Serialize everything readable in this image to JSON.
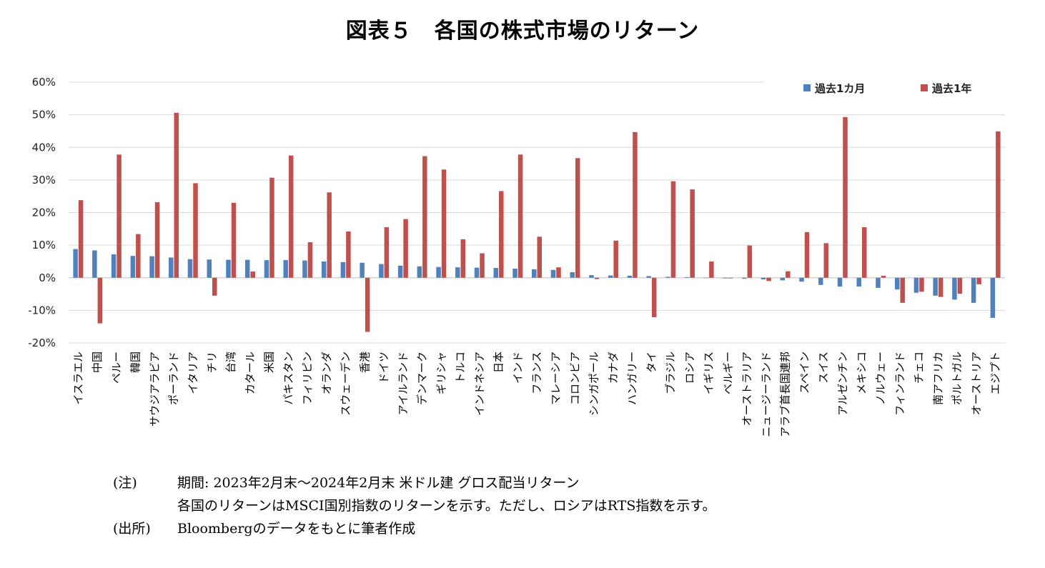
{
  "title": "図表５　各国の株式市場のリターン",
  "chart_data": {
    "type": "bar",
    "ylim": [
      -0.2,
      0.6
    ],
    "yticks": [
      -0.2,
      -0.1,
      0,
      0.1,
      0.2,
      0.3,
      0.4,
      0.5,
      0.6
    ],
    "ytick_labels": [
      "-20%",
      "-10%",
      "0%",
      "10%",
      "20%",
      "30%",
      "40%",
      "50%",
      "60%"
    ],
    "grid": true,
    "legend_position": "top-right",
    "categories": [
      "イスラエル",
      "中国",
      "ペルー",
      "韓国",
      "サウジアラビア",
      "ポーランド",
      "イタリア",
      "チリ",
      "台湾",
      "カタール",
      "米国",
      "パキスタン",
      "フィリピン",
      "オランダ",
      "スウェーデン",
      "香港",
      "ドイツ",
      "アイルランド",
      "デンマーク",
      "ギリシャ",
      "トルコ",
      "インドネシア",
      "日本",
      "インド",
      "フランス",
      "マレーシア",
      "コロンビア",
      "シンガポール",
      "カナダ",
      "ハンガリー",
      "タイ",
      "ブラジル",
      "ロシア",
      "イギリス",
      "ベルギー",
      "オーストラリア",
      "ニュージーランド",
      "アラブ首長国連邦",
      "スペイン",
      "スイス",
      "アルゼンチン",
      "メキシコ",
      "ノルウェー",
      "フィンランド",
      "チェコ",
      "南アフリカ",
      "ポルトガル",
      "オーストリア",
      "エジプト"
    ],
    "series": [
      {
        "name": "過去1カ月",
        "color": "#4F81BD",
        "values": [
          0.088,
          0.084,
          0.072,
          0.067,
          0.066,
          0.062,
          0.057,
          0.056,
          0.055,
          0.055,
          0.054,
          0.054,
          0.053,
          0.05,
          0.048,
          0.046,
          0.042,
          0.037,
          0.035,
          0.033,
          0.032,
          0.031,
          0.03,
          0.028,
          0.026,
          0.024,
          0.017,
          0.008,
          0.007,
          0.006,
          0.005,
          0.003,
          0.002,
          -0.001,
          -0.002,
          -0.003,
          -0.005,
          -0.008,
          -0.012,
          -0.022,
          -0.027,
          -0.027,
          -0.031,
          -0.036,
          -0.046,
          -0.055,
          -0.067,
          -0.077,
          -0.123
        ]
      },
      {
        "name": "過去1年",
        "color": "#C0504D",
        "values": [
          0.238,
          -0.14,
          0.378,
          0.134,
          0.232,
          0.506,
          0.29,
          -0.055,
          0.23,
          0.019,
          0.307,
          0.375,
          0.109,
          0.262,
          0.142,
          -0.166,
          0.155,
          0.18,
          0.373,
          0.332,
          0.118,
          0.075,
          0.266,
          0.378,
          0.126,
          0.032,
          0.367,
          -0.004,
          0.114,
          0.447,
          -0.121,
          0.296,
          0.271,
          0.05,
          -0.002,
          0.099,
          -0.01,
          0.02,
          0.14,
          0.106,
          0.493,
          0.155,
          0.006,
          -0.077,
          -0.043,
          -0.059,
          -0.049,
          -0.02,
          0.449
        ]
      }
    ]
  },
  "notes": {
    "note_label": "(注)",
    "note_line1": "期間: 2023年2月末～2024年2月末 米ドル建 グロス配当リターン",
    "note_line2": "各国のリターンはMSCI国別指数のリターンを示す。ただし、ロシアはRTS指数を示す。",
    "source_label": "(出所)",
    "source_text": "Bloombergのデータをもとに筆者作成"
  }
}
